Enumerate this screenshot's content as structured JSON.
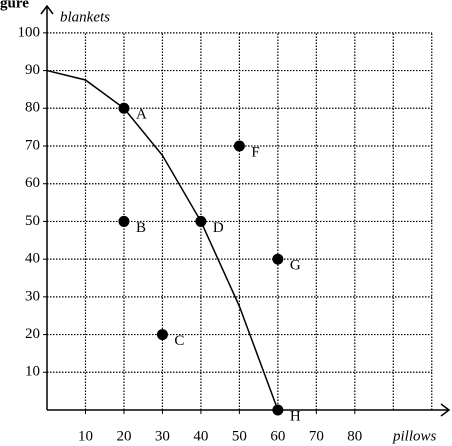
{
  "chart_data": {
    "type": "scatter",
    "title": "gure",
    "x_label": "pillows",
    "y_label": "blankets",
    "xlim": [
      0,
      105
    ],
    "ylim": [
      0,
      105
    ],
    "xticks": [
      10,
      20,
      30,
      40,
      50,
      60,
      70,
      80
    ],
    "yticks": [
      10,
      20,
      30,
      40,
      50,
      60,
      70,
      80,
      90,
      100
    ],
    "xgrid": [
      10,
      20,
      30,
      40,
      50,
      60,
      70,
      80,
      90,
      100
    ],
    "grid": true,
    "points": {
      "labels": [
        "A",
        "B",
        "C",
        "D",
        "F",
        "G",
        "H"
      ],
      "x": [
        20,
        20,
        30,
        40,
        50,
        60,
        60
      ],
      "values": [
        80,
        50,
        20,
        50,
        70,
        40,
        0
      ],
      "color": "#000000"
    },
    "curve": {
      "x": [
        0,
        10,
        20,
        30,
        40,
        50,
        60
      ],
      "values": [
        90,
        87.5,
        80,
        67.5,
        50,
        27.5,
        0
      ],
      "color": "#000000"
    }
  }
}
